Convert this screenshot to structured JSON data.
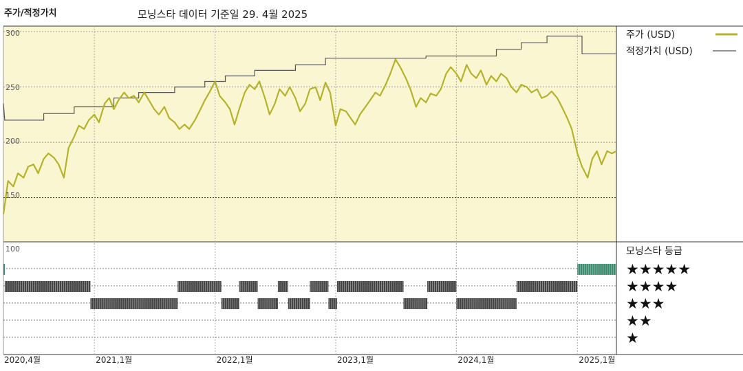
{
  "header": {
    "left_title": "주가/적정가치",
    "center_title": "모닝스타 데이터 기준일 29. 4월 2025"
  },
  "colors": {
    "price": "#b5b22a",
    "fair_value": "#555555",
    "panel_bg": "#faf6d2",
    "rating5": "#3a8a6e",
    "rating_other": "#444444"
  },
  "chart_data": {
    "type": "line",
    "x_start": "2020-04",
    "x_end": "2025-04",
    "ylim": [
      110,
      305
    ],
    "yticks": [
      150,
      200,
      250,
      300
    ],
    "xticks": [
      {
        "label": "2020,4월",
        "date": "2020-04"
      },
      {
        "label": "2021,1월",
        "date": "2021-01"
      },
      {
        "label": "2022,1월",
        "date": "2022-01"
      },
      {
        "label": "2023,1월",
        "date": "2023-01"
      },
      {
        "label": "2024,1월",
        "date": "2024-01"
      },
      {
        "label": "2025,1월",
        "date": "2025-01"
      }
    ],
    "series": [
      {
        "name": "주가 (USD)",
        "kind": "price",
        "points": [
          [
            "2020-04-01",
            135
          ],
          [
            "2020-04-15",
            165
          ],
          [
            "2020-05-01",
            160
          ],
          [
            "2020-05-15",
            172
          ],
          [
            "2020-06-01",
            168
          ],
          [
            "2020-06-15",
            178
          ],
          [
            "2020-07-01",
            180
          ],
          [
            "2020-07-15",
            172
          ],
          [
            "2020-08-01",
            185
          ],
          [
            "2020-08-15",
            190
          ],
          [
            "2020-09-01",
            186
          ],
          [
            "2020-09-15",
            180
          ],
          [
            "2020-10-01",
            168
          ],
          [
            "2020-10-15",
            195
          ],
          [
            "2020-11-01",
            205
          ],
          [
            "2020-11-15",
            215
          ],
          [
            "2020-12-01",
            212
          ],
          [
            "2020-12-15",
            220
          ],
          [
            "2021-01-01",
            225
          ],
          [
            "2021-01-15",
            218
          ],
          [
            "2021-02-01",
            235
          ],
          [
            "2021-02-15",
            240
          ],
          [
            "2021-03-01",
            230
          ],
          [
            "2021-03-15",
            238
          ],
          [
            "2021-04-01",
            245
          ],
          [
            "2021-04-15",
            240
          ],
          [
            "2021-05-01",
            242
          ],
          [
            "2021-05-15",
            236
          ],
          [
            "2021-06-01",
            245
          ],
          [
            "2021-06-15",
            238
          ],
          [
            "2021-07-01",
            230
          ],
          [
            "2021-07-15",
            225
          ],
          [
            "2021-08-01",
            232
          ],
          [
            "2021-08-15",
            222
          ],
          [
            "2021-09-01",
            218
          ],
          [
            "2021-09-15",
            212
          ],
          [
            "2021-10-01",
            216
          ],
          [
            "2021-10-15",
            212
          ],
          [
            "2021-11-01",
            220
          ],
          [
            "2021-11-15",
            228
          ],
          [
            "2021-12-01",
            238
          ],
          [
            "2021-12-15",
            245
          ],
          [
            "2022-01-01",
            255
          ],
          [
            "2022-01-15",
            242
          ],
          [
            "2022-02-01",
            236
          ],
          [
            "2022-02-15",
            230
          ],
          [
            "2022-03-01",
            216
          ],
          [
            "2022-03-15",
            230
          ],
          [
            "2022-04-01",
            245
          ],
          [
            "2022-04-15",
            252
          ],
          [
            "2022-05-01",
            248
          ],
          [
            "2022-05-15",
            255
          ],
          [
            "2022-06-01",
            240
          ],
          [
            "2022-06-15",
            225
          ],
          [
            "2022-07-01",
            235
          ],
          [
            "2022-07-15",
            248
          ],
          [
            "2022-08-01",
            242
          ],
          [
            "2022-08-15",
            250
          ],
          [
            "2022-09-01",
            240
          ],
          [
            "2022-09-15",
            228
          ],
          [
            "2022-10-01",
            235
          ],
          [
            "2022-10-15",
            248
          ],
          [
            "2022-11-01",
            250
          ],
          [
            "2022-11-15",
            238
          ],
          [
            "2022-12-01",
            254
          ],
          [
            "2022-12-15",
            245
          ],
          [
            "2023-01-01",
            215
          ],
          [
            "2023-01-15",
            230
          ],
          [
            "2023-02-01",
            228
          ],
          [
            "2023-02-15",
            222
          ],
          [
            "2023-03-01",
            216
          ],
          [
            "2023-03-15",
            225
          ],
          [
            "2023-04-01",
            232
          ],
          [
            "2023-04-15",
            238
          ],
          [
            "2023-05-01",
            245
          ],
          [
            "2023-05-15",
            242
          ],
          [
            "2023-06-01",
            252
          ],
          [
            "2023-06-15",
            262
          ],
          [
            "2023-07-01",
            275
          ],
          [
            "2023-07-15",
            268
          ],
          [
            "2023-08-01",
            258
          ],
          [
            "2023-08-15",
            248
          ],
          [
            "2023-09-01",
            232
          ],
          [
            "2023-09-15",
            240
          ],
          [
            "2023-10-01",
            236
          ],
          [
            "2023-10-15",
            244
          ],
          [
            "2023-11-01",
            242
          ],
          [
            "2023-11-15",
            248
          ],
          [
            "2023-12-01",
            262
          ],
          [
            "2023-12-15",
            268
          ],
          [
            "2024-01-01",
            262
          ],
          [
            "2024-01-15",
            255
          ],
          [
            "2024-02-01",
            270
          ],
          [
            "2024-02-15",
            262
          ],
          [
            "2024-03-01",
            258
          ],
          [
            "2024-03-15",
            265
          ],
          [
            "2024-04-01",
            252
          ],
          [
            "2024-04-15",
            260
          ],
          [
            "2024-05-01",
            255
          ],
          [
            "2024-05-15",
            262
          ],
          [
            "2024-06-01",
            258
          ],
          [
            "2024-06-15",
            250
          ],
          [
            "2024-07-01",
            245
          ],
          [
            "2024-07-15",
            252
          ],
          [
            "2024-08-01",
            250
          ],
          [
            "2024-08-15",
            245
          ],
          [
            "2024-09-01",
            248
          ],
          [
            "2024-09-15",
            240
          ],
          [
            "2024-10-01",
            242
          ],
          [
            "2024-10-15",
            246
          ],
          [
            "2024-11-01",
            240
          ],
          [
            "2024-11-15",
            232
          ],
          [
            "2024-12-01",
            222
          ],
          [
            "2024-12-15",
            212
          ],
          [
            "2025-01-01",
            190
          ],
          [
            "2025-01-15",
            178
          ],
          [
            "2025-02-01",
            168
          ],
          [
            "2025-02-15",
            185
          ],
          [
            "2025-03-01",
            192
          ],
          [
            "2025-03-15",
            180
          ],
          [
            "2025-04-01",
            192
          ],
          [
            "2025-04-15",
            190
          ],
          [
            "2025-04-29",
            192
          ]
        ]
      },
      {
        "name": "적정가치 (USD)",
        "kind": "fair_value",
        "points": [
          [
            "2020-04-01",
            235
          ],
          [
            "2020-04-05",
            220
          ],
          [
            "2020-08-01",
            220
          ],
          [
            "2020-08-01",
            226
          ],
          [
            "2020-11-01",
            226
          ],
          [
            "2020-11-01",
            232
          ],
          [
            "2021-03-01",
            232
          ],
          [
            "2021-03-01",
            240
          ],
          [
            "2021-05-15",
            240
          ],
          [
            "2021-05-15",
            245
          ],
          [
            "2021-09-01",
            245
          ],
          [
            "2021-09-01",
            250
          ],
          [
            "2021-12-01",
            250
          ],
          [
            "2021-12-01",
            255
          ],
          [
            "2022-02-01",
            255
          ],
          [
            "2022-02-01",
            260
          ],
          [
            "2022-05-01",
            260
          ],
          [
            "2022-05-01",
            265
          ],
          [
            "2022-09-01",
            265
          ],
          [
            "2022-09-01",
            270
          ],
          [
            "2022-12-01",
            270
          ],
          [
            "2022-12-01",
            276
          ],
          [
            "2023-10-01",
            276
          ],
          [
            "2023-10-01",
            278
          ],
          [
            "2024-05-01",
            278
          ],
          [
            "2024-05-01",
            284
          ],
          [
            "2024-07-15",
            284
          ],
          [
            "2024-07-15",
            290
          ],
          [
            "2024-10-01",
            290
          ],
          [
            "2024-10-01",
            296
          ],
          [
            "2025-01-15",
            296
          ],
          [
            "2025-01-15",
            280
          ],
          [
            "2025-04-29",
            280
          ]
        ]
      }
    ],
    "ratings": {
      "ylabel_top": "100",
      "levels": [
        5,
        4,
        3,
        2,
        1
      ],
      "segments": [
        {
          "start": "2020-04-01",
          "end": "2020-04-05",
          "stars": 5
        },
        {
          "start": "2020-04-05",
          "end": "2020-12-20",
          "stars": 4
        },
        {
          "start": "2020-12-20",
          "end": "2021-09-10",
          "stars": 3
        },
        {
          "start": "2021-09-10",
          "end": "2022-01-20",
          "stars": 4
        },
        {
          "start": "2022-01-20",
          "end": "2022-03-15",
          "stars": 3
        },
        {
          "start": "2022-03-15",
          "end": "2022-05-10",
          "stars": 4
        },
        {
          "start": "2022-05-10",
          "end": "2022-07-10",
          "stars": 3
        },
        {
          "start": "2022-07-10",
          "end": "2022-08-10",
          "stars": 4
        },
        {
          "start": "2022-08-10",
          "end": "2022-10-15",
          "stars": 3
        },
        {
          "start": "2022-10-15",
          "end": "2022-12-10",
          "stars": 4
        },
        {
          "start": "2022-12-10",
          "end": "2023-01-05",
          "stars": 3
        },
        {
          "start": "2023-01-05",
          "end": "2023-07-25",
          "stars": 4
        },
        {
          "start": "2023-07-25",
          "end": "2023-10-05",
          "stars": 3
        },
        {
          "start": "2023-10-05",
          "end": "2024-01-01",
          "stars": 4
        },
        {
          "start": "2024-01-01",
          "end": "2024-07-01",
          "stars": 3
        },
        {
          "start": "2024-07-01",
          "end": "2025-01-01",
          "stars": 4
        },
        {
          "start": "2025-01-01",
          "end": "2025-04-29",
          "stars": 5
        }
      ]
    }
  },
  "legend": {
    "price_label": "주가 (USD)",
    "fair_value_label": "적정가치 (USD)",
    "rating_title": "모닝스타 등급",
    "stars": [
      "★★★★★",
      "★★★★",
      "★★★",
      "★★",
      "★"
    ]
  },
  "ticks": {
    "y300": "300",
    "y250": "250",
    "y200": "200",
    "y150": "150",
    "r100": "100"
  }
}
